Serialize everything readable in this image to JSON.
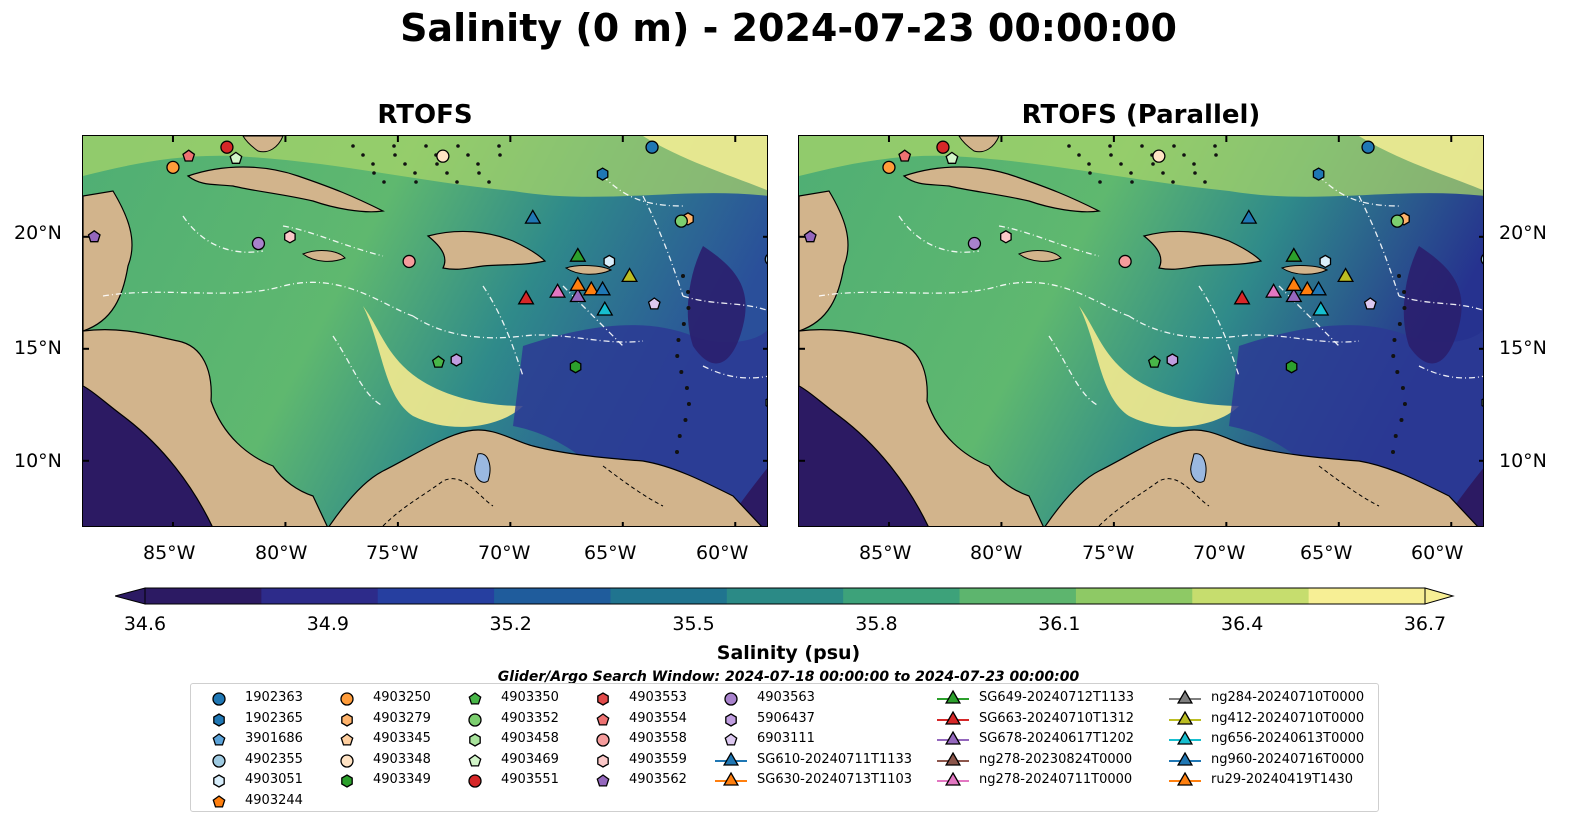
{
  "title": "Salinity (0 m) - 2024-07-23 00:00:00",
  "panels": [
    {
      "title": "RTOFS"
    },
    {
      "title": "RTOFS (Parallel)"
    }
  ],
  "axes": {
    "lat_labels": [
      "20°N",
      "15°N",
      "10°N"
    ],
    "lon_labels": [
      "85°W",
      "80°W",
      "75°W",
      "70°W",
      "65°W",
      "60°W"
    ]
  },
  "colorbar": {
    "label": "Salinity (psu)",
    "ticks": [
      "34.6",
      "34.9",
      "35.2",
      "35.5",
      "35.8",
      "36.1",
      "36.4",
      "36.7"
    ],
    "range": [
      34.6,
      36.7
    ],
    "colors": [
      "#2c1a63",
      "#2d2b8a",
      "#263fa0",
      "#1f5c9c",
      "#20748f",
      "#2b8a86",
      "#3da27a",
      "#5db56e",
      "#8ec965",
      "#c6dd6e",
      "#f7ef95"
    ]
  },
  "search_window": "Glider/Argo Search Window: 2024-07-18 00:00:00 to 2024-07-23 00:00:00",
  "legend": {
    "argo": [
      {
        "id": "1902363",
        "marker": "circle",
        "color": "#1f77b4"
      },
      {
        "id": "1902365",
        "marker": "hexagon",
        "color": "#1f77b4"
      },
      {
        "id": "3901686",
        "marker": "pentagon",
        "color": "#5ba3d9"
      },
      {
        "id": "4902355",
        "marker": "circle",
        "color": "#9ecae1"
      },
      {
        "id": "4903051",
        "marker": "hexagon",
        "color": "#d8eefb"
      },
      {
        "id": "4903244",
        "marker": "pentagon",
        "color": "#ff7f0e"
      },
      {
        "id": "4903250",
        "marker": "circle",
        "color": "#ff9c3a"
      },
      {
        "id": "4903279",
        "marker": "hexagon",
        "color": "#ffb36b"
      },
      {
        "id": "4903345",
        "marker": "pentagon",
        "color": "#ffcf9f"
      },
      {
        "id": "4903348",
        "marker": "circle",
        "color": "#ffe3c4"
      },
      {
        "id": "4903349",
        "marker": "hexagon",
        "color": "#2ca02c"
      },
      {
        "id": "4903350",
        "marker": "pentagon",
        "color": "#48b648"
      },
      {
        "id": "4903352",
        "marker": "circle",
        "color": "#7ccf6f"
      },
      {
        "id": "4903458",
        "marker": "hexagon",
        "color": "#a8e39c"
      },
      {
        "id": "4903469",
        "marker": "pentagon",
        "color": "#d2f5c9"
      },
      {
        "id": "4903551",
        "marker": "circle",
        "color": "#d62728"
      },
      {
        "id": "4903553",
        "marker": "hexagon",
        "color": "#e14a4a"
      },
      {
        "id": "4903554",
        "marker": "pentagon",
        "color": "#ee7272"
      },
      {
        "id": "4903558",
        "marker": "circle",
        "color": "#f59c9c"
      },
      {
        "id": "4903559",
        "marker": "hexagon",
        "color": "#fbc8c8"
      },
      {
        "id": "4903562",
        "marker": "pentagon",
        "color": "#9467bd"
      },
      {
        "id": "4903563",
        "marker": "circle",
        "color": "#a882cc"
      },
      {
        "id": "5906437",
        "marker": "hexagon",
        "color": "#c09ee0"
      },
      {
        "id": "6903111",
        "marker": "pentagon",
        "color": "#dcc8f0"
      }
    ],
    "gliders": [
      {
        "id": "SG610-20240711T1133",
        "color": "#1f77b4"
      },
      {
        "id": "SG630-20240713T1103",
        "color": "#ff7f0e"
      },
      {
        "id": "SG649-20240712T1133",
        "color": "#2ca02c"
      },
      {
        "id": "SG663-20240710T1312",
        "color": "#d62728"
      },
      {
        "id": "SG678-20240617T1202",
        "color": "#9467bd"
      },
      {
        "id": "ng278-20230824T0000",
        "color": "#8c564b"
      },
      {
        "id": "ng278-20240711T0000",
        "color": "#e377c2"
      },
      {
        "id": "ng284-20240710T0000",
        "color": "#7f7f7f"
      },
      {
        "id": "ng412-20240710T0000",
        "color": "#bcbd22"
      },
      {
        "id": "ng656-20240613T0000",
        "color": "#17becf"
      },
      {
        "id": "ng960-20240716T0000",
        "color": "#1f77b4"
      },
      {
        "id": "ru29-20240419T1430",
        "color": "#ff7f0e"
      }
    ]
  },
  "map_markers": [
    {
      "id": "1902363",
      "lon": -63.7,
      "lat": 24.0
    },
    {
      "id": "1902365",
      "lon": -65.9,
      "lat": 22.8
    },
    {
      "id": "3901686",
      "lon": -57.8,
      "lat": 22.1
    },
    {
      "id": "4902355",
      "lon": -58.4,
      "lat": 19.0
    },
    {
      "id": "4903051",
      "lon": -65.6,
      "lat": 18.9
    },
    {
      "id": "4903250",
      "lon": -85.0,
      "lat": 23.1
    },
    {
      "id": "4903279",
      "lon": -62.1,
      "lat": 20.8
    },
    {
      "id": "4903348",
      "lon": -73.0,
      "lat": 23.6
    },
    {
      "id": "4903349",
      "lon": -67.1,
      "lat": 14.2
    },
    {
      "id": "4903350",
      "lon": -73.2,
      "lat": 14.4
    },
    {
      "id": "4903352",
      "lon": -62.4,
      "lat": 20.7
    },
    {
      "id": "4903458",
      "lon": -58.4,
      "lat": 12.6
    },
    {
      "id": "4903469",
      "lon": -82.2,
      "lat": 23.5
    },
    {
      "id": "4903551",
      "lon": -82.6,
      "lat": 24.0
    },
    {
      "id": "4903554",
      "lon": -84.3,
      "lat": 23.6
    },
    {
      "id": "4903558",
      "lon": -74.5,
      "lat": 18.9
    },
    {
      "id": "4903559",
      "lon": -79.8,
      "lat": 20.0
    },
    {
      "id": "4903562",
      "lon": -88.5,
      "lat": 20.0
    },
    {
      "id": "4903563",
      "lon": -81.2,
      "lat": 19.7
    },
    {
      "id": "5906437",
      "lon": -72.4,
      "lat": 14.5
    },
    {
      "id": "6903111",
      "lon": -63.6,
      "lat": 17.0
    }
  ],
  "glider_markers": [
    {
      "id": "SG610-20240711T1133",
      "lon": -69.0,
      "lat": 20.8
    },
    {
      "id": "SG630-20240713T1103",
      "lon": -66.4,
      "lat": 17.6
    },
    {
      "id": "SG649-20240712T1133",
      "lon": -67.0,
      "lat": 19.1
    },
    {
      "id": "SG663-20240710T1312",
      "lon": -69.3,
      "lat": 17.2
    },
    {
      "id": "SG678-20240617T1202",
      "lon": -67.0,
      "lat": 17.3
    },
    {
      "id": "ng278-20240711T0000",
      "lon": -67.9,
      "lat": 17.5
    },
    {
      "id": "ng412-20240710T0000",
      "lon": -64.7,
      "lat": 18.2
    },
    {
      "id": "ng656-20240613T0000",
      "lon": -65.8,
      "lat": 16.7
    },
    {
      "id": "ng960-20240716T0000",
      "lon": -65.9,
      "lat": 17.6
    },
    {
      "id": "ru29-20240419T1430",
      "lon": -67.0,
      "lat": 17.8
    }
  ],
  "map_extent": {
    "lon": [
      -89,
      -58.5
    ],
    "lat": [
      7,
      24.5
    ]
  }
}
